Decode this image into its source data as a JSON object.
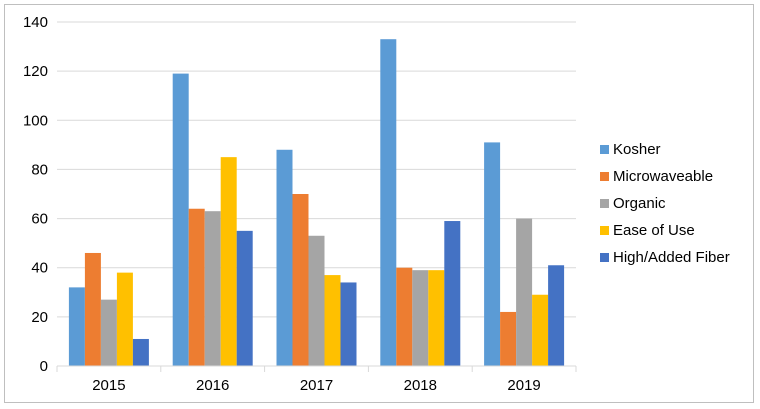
{
  "chart_data": {
    "type": "bar",
    "title": "",
    "xlabel": "",
    "ylabel": "",
    "categories": [
      "2015",
      "2016",
      "2017",
      "2018",
      "2019"
    ],
    "ylim": [
      0,
      140
    ],
    "yticks": [
      0,
      20,
      40,
      60,
      80,
      100,
      120,
      140
    ],
    "grid": true,
    "legend_position": "right",
    "series": [
      {
        "name": "Kosher",
        "color": "#5b9bd5",
        "values": [
          32,
          119,
          88,
          133,
          91
        ]
      },
      {
        "name": "Microwaveable",
        "color": "#ed7d31",
        "values": [
          46,
          64,
          70,
          40,
          22
        ]
      },
      {
        "name": "Organic",
        "color": "#a5a5a5",
        "values": [
          27,
          63,
          53,
          39,
          60
        ]
      },
      {
        "name": "Ease of Use",
        "color": "#ffc000",
        "values": [
          38,
          85,
          37,
          39,
          29
        ]
      },
      {
        "name": "High/Added Fiber",
        "color": "#4472c4",
        "values": [
          11,
          55,
          34,
          59,
          41
        ]
      }
    ]
  }
}
